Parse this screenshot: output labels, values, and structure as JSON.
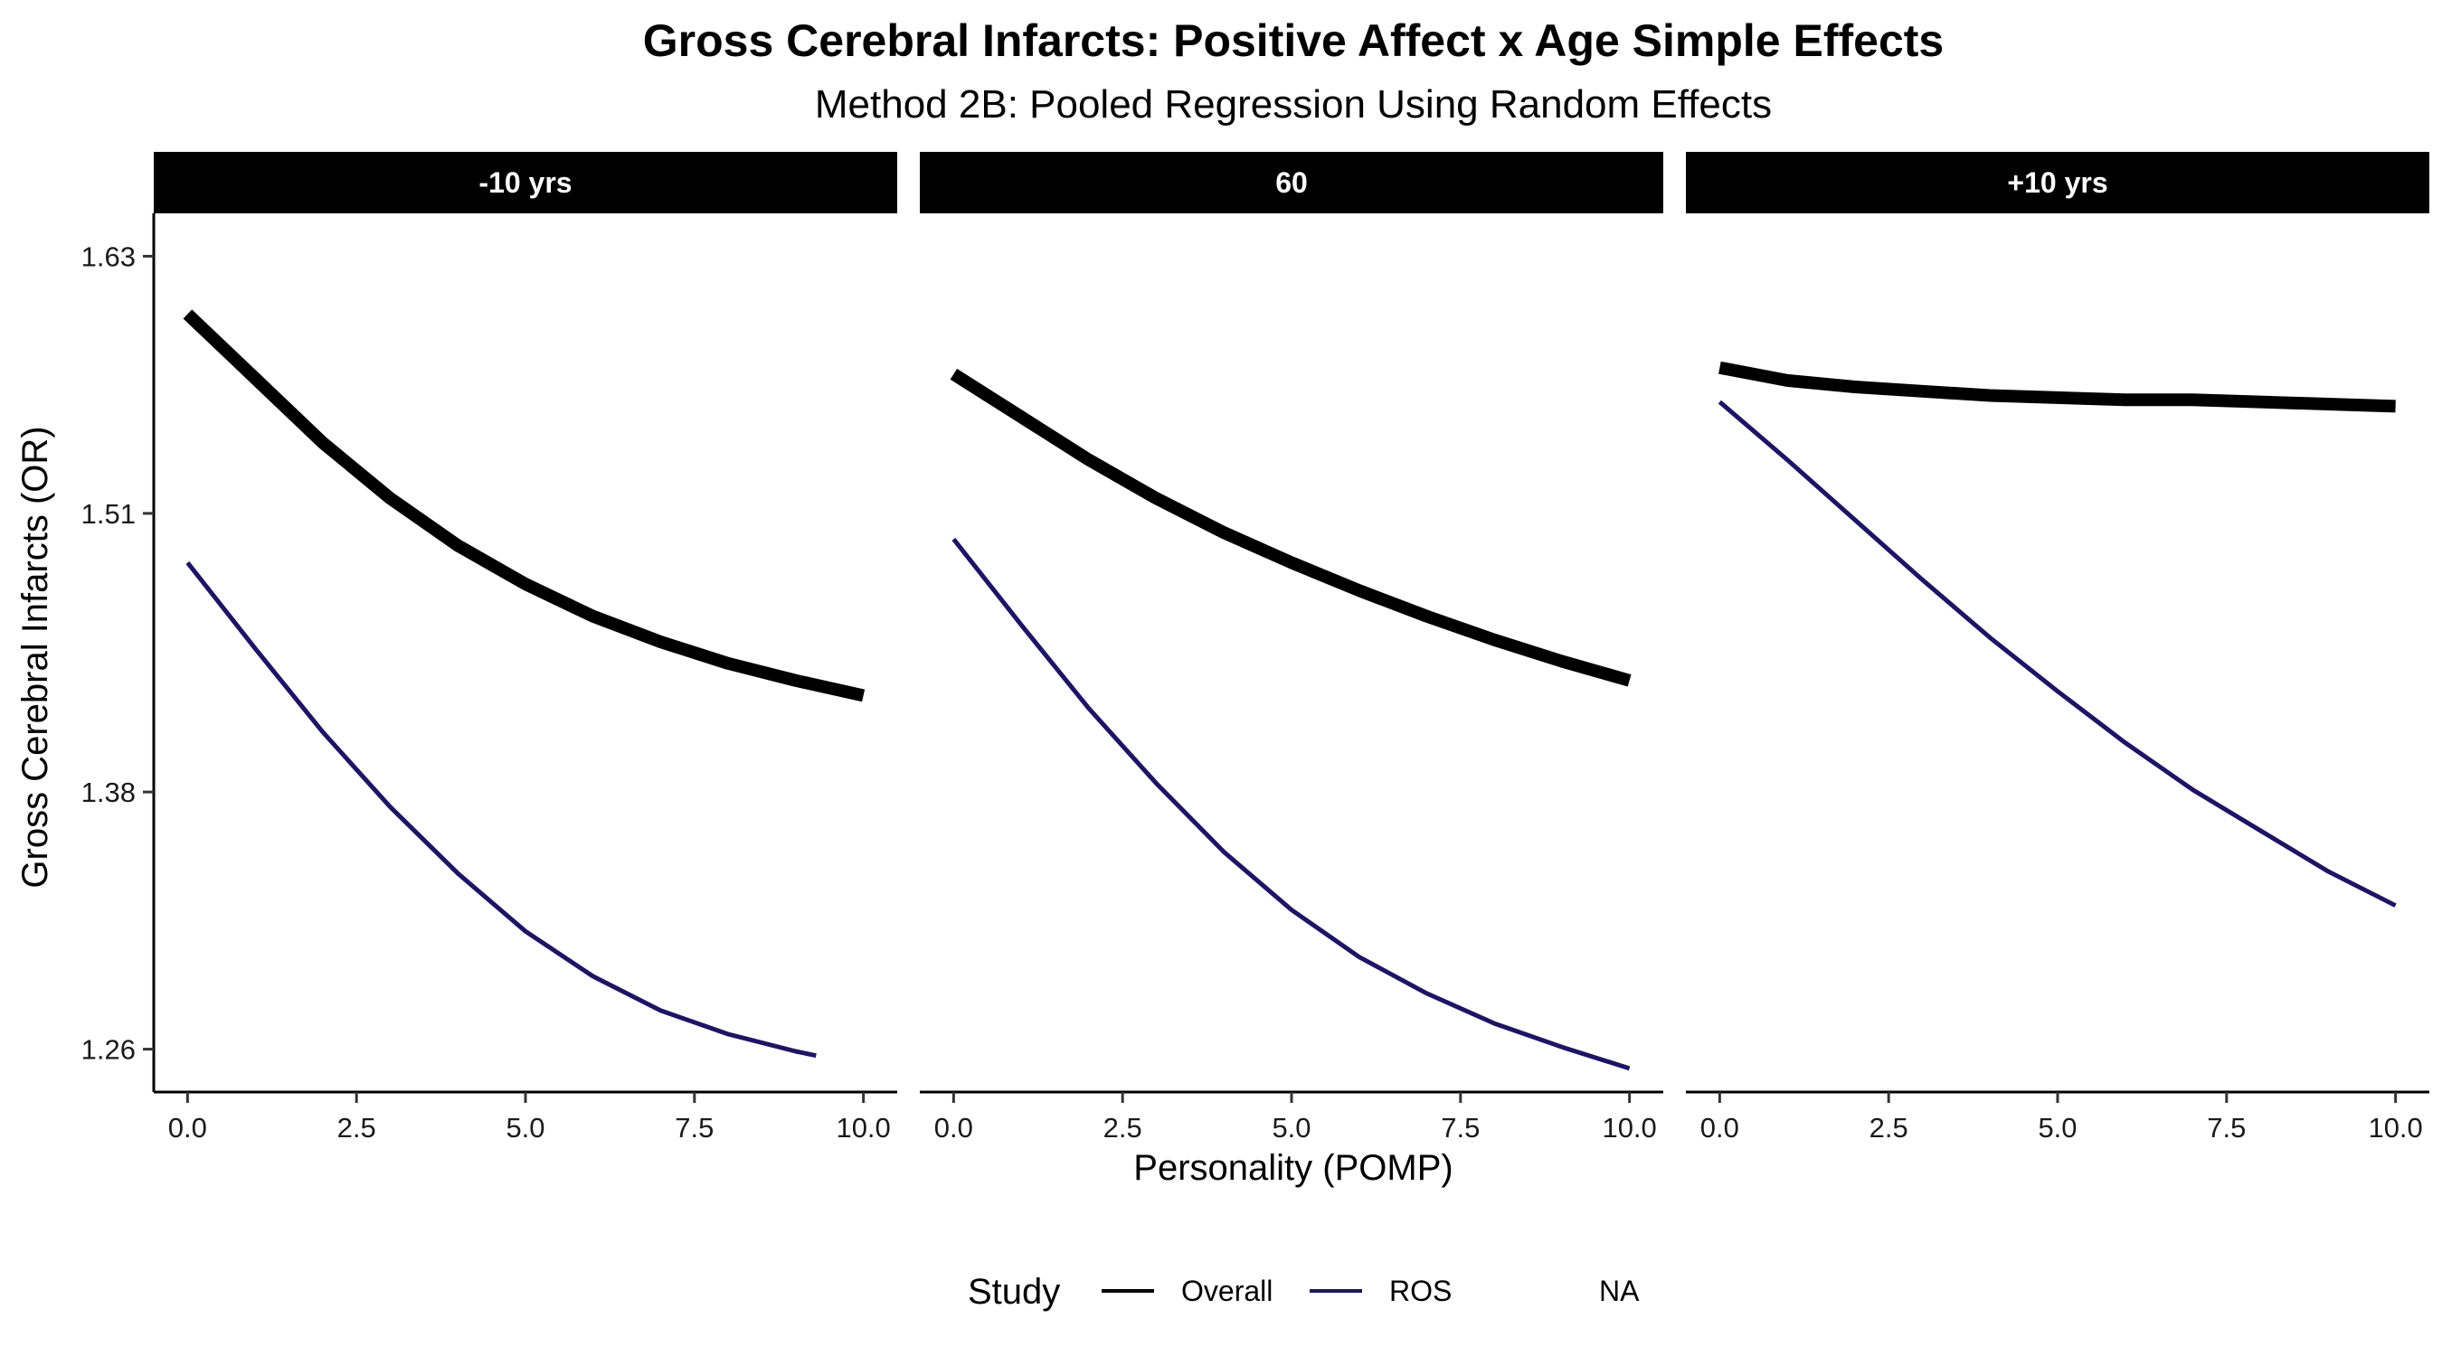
{
  "chart_data": {
    "type": "line",
    "title": "Gross Cerebral Infarcts: Positive Affect x Age Simple Effects",
    "subtitle": "Method 2B: Pooled Regression Using Random Effects",
    "xlabel": "Personality (POMP)",
    "ylabel": "Gross Cerebral Infarcts (OR)",
    "xlim": [
      -0.5,
      10.5
    ],
    "ylim": [
      1.24,
      1.65
    ],
    "x_ticks": [
      0.0,
      2.5,
      5.0,
      7.5,
      10.0
    ],
    "x_tick_labels": [
      "0.0",
      "2.5",
      "5.0",
      "7.5",
      "10.0"
    ],
    "y_ticks": [
      1.26,
      1.38,
      1.51,
      1.63
    ],
    "y_tick_labels": [
      "1.26",
      "1.38",
      "1.51",
      "1.63"
    ],
    "grid": false,
    "legend": {
      "title": "Study",
      "position": "bottom",
      "entries": [
        {
          "label": "Overall",
          "color": "#000000"
        },
        {
          "label": "ROS",
          "color": "#1f1463"
        },
        {
          "label": "NA",
          "color": null
        }
      ]
    },
    "panels": [
      {
        "strip": "-10 yrs",
        "series": [
          {
            "name": "Overall",
            "color": "#000000",
            "width": 14,
            "x": [
              0,
              1,
              2,
              3,
              4,
              5,
              6,
              7,
              8,
              9,
              10
            ],
            "y": [
              1.603,
              1.573,
              1.543,
              1.517,
              1.495,
              1.477,
              1.462,
              1.45,
              1.44,
              1.432,
              1.425
            ]
          },
          {
            "name": "ROS",
            "color": "#1f1463",
            "width": 5,
            "x": [
              0,
              1,
              2,
              3,
              4,
              5,
              6,
              7,
              8,
              9,
              9.3
            ],
            "y": [
              1.487,
              1.447,
              1.408,
              1.373,
              1.342,
              1.315,
              1.294,
              1.278,
              1.267,
              1.259,
              1.257
            ]
          }
        ]
      },
      {
        "strip": "60",
        "series": [
          {
            "name": "Overall",
            "color": "#000000",
            "width": 14,
            "x": [
              0,
              1,
              2,
              3,
              4,
              5,
              6,
              7,
              8,
              9,
              10
            ],
            "y": [
              1.575,
              1.555,
              1.535,
              1.517,
              1.501,
              1.487,
              1.474,
              1.462,
              1.451,
              1.441,
              1.432
            ]
          },
          {
            "name": "ROS",
            "color": "#1f1463",
            "width": 5,
            "x": [
              0,
              1,
              2,
              3,
              4,
              5,
              6,
              7,
              8,
              9,
              10
            ],
            "y": [
              1.498,
              1.458,
              1.419,
              1.384,
              1.352,
              1.325,
              1.303,
              1.286,
              1.272,
              1.261,
              1.251
            ]
          }
        ]
      },
      {
        "strip": "+10 yrs",
        "series": [
          {
            "name": "Overall",
            "color": "#000000",
            "width": 14,
            "x": [
              0,
              1,
              2,
              3,
              4,
              5,
              6,
              7,
              8,
              9,
              10
            ],
            "y": [
              1.578,
              1.572,
              1.569,
              1.567,
              1.565,
              1.564,
              1.563,
              1.563,
              1.562,
              1.561,
              1.56
            ]
          },
          {
            "name": "ROS",
            "color": "#1f1463",
            "width": 5,
            "x": [
              0,
              1,
              2,
              3,
              4,
              5,
              6,
              7,
              8,
              9,
              10
            ],
            "y": [
              1.562,
              1.535,
              1.507,
              1.479,
              1.452,
              1.427,
              1.403,
              1.381,
              1.362,
              1.343,
              1.327
            ]
          }
        ]
      }
    ]
  }
}
